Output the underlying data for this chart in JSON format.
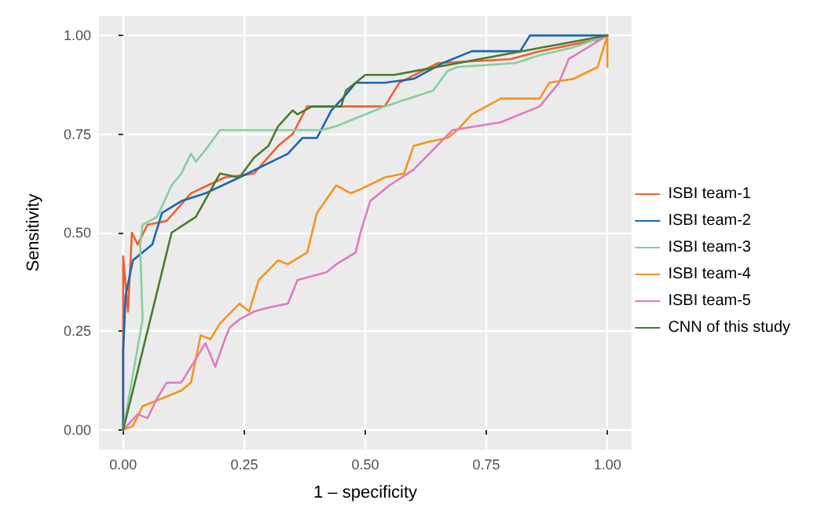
{
  "chart_data": {
    "type": "line",
    "xlabel": "1 – specificity",
    "ylabel": "Sensitivity",
    "xlim": [
      -0.05,
      1.05
    ],
    "ylim": [
      -0.05,
      1.05
    ],
    "xticks": [
      {
        "value": 0,
        "label": "0.00"
      },
      {
        "value": 0.25,
        "label": "0.25"
      },
      {
        "value": 0.5,
        "label": "0.50"
      },
      {
        "value": 0.75,
        "label": "0.75"
      },
      {
        "value": 1,
        "label": "1.00"
      }
    ],
    "yticks": [
      {
        "value": 0,
        "label": "0.00"
      },
      {
        "value": 0.25,
        "label": "0.25"
      },
      {
        "value": 0.5,
        "label": "0.50"
      },
      {
        "value": 0.75,
        "label": "0.75"
      },
      {
        "value": 1,
        "label": "1.00"
      }
    ],
    "grid": true,
    "legend": "right",
    "marker": "none",
    "line_style": "solid",
    "series": [
      {
        "name": "ISBI team-1",
        "color": "#f0602e",
        "x": [
          0,
          0,
          0.01,
          0.018,
          0.03,
          0.05,
          0.09,
          0.14,
          0.21,
          0.27,
          0.32,
          0.35,
          0.38,
          0.54,
          0.57,
          0.65,
          0.8,
          0.86,
          0.98,
          1
        ],
        "values": [
          0,
          0.44,
          0.3,
          0.5,
          0.47,
          0.52,
          0.53,
          0.6,
          0.64,
          0.65,
          0.72,
          0.75,
          0.82,
          0.82,
          0.88,
          0.93,
          0.94,
          0.96,
          0.99,
          1
        ]
      },
      {
        "name": "ISBI team-2",
        "color": "#1866b4",
        "x": [
          0,
          0,
          0.005,
          0.02,
          0.06,
          0.08,
          0.12,
          0.17,
          0.24,
          0.29,
          0.34,
          0.37,
          0.4,
          0.43,
          0.46,
          0.48,
          0.54,
          0.6,
          0.66,
          0.72,
          0.82,
          0.84,
          1
        ],
        "values": [
          0,
          0.2,
          0.34,
          0.43,
          0.47,
          0.55,
          0.58,
          0.6,
          0.64,
          0.67,
          0.7,
          0.74,
          0.74,
          0.81,
          0.85,
          0.88,
          0.88,
          0.89,
          0.93,
          0.96,
          0.96,
          1,
          1
        ]
      },
      {
        "name": "ISBI team-3",
        "color": "#86cfa0",
        "x": [
          0,
          0.04,
          0.035,
          0.04,
          0.07,
          0.1,
          0.12,
          0.14,
          0.15,
          0.17,
          0.2,
          0.22,
          0.41,
          0.44,
          0.48,
          0.52,
          0.54,
          0.64,
          0.67,
          0.69,
          0.81,
          0.86,
          0.93,
          1
        ],
        "values": [
          0,
          0.28,
          0.47,
          0.52,
          0.54,
          0.62,
          0.65,
          0.7,
          0.68,
          0.71,
          0.76,
          0.76,
          0.76,
          0.77,
          0.79,
          0.81,
          0.82,
          0.86,
          0.91,
          0.92,
          0.93,
          0.95,
          0.97,
          1
        ]
      },
      {
        "name": "ISBI team-4",
        "color": "#f7941d",
        "x": [
          0,
          0.02,
          0.04,
          0.08,
          0.12,
          0.14,
          0.16,
          0.18,
          0.2,
          0.24,
          0.26,
          0.28,
          0.32,
          0.34,
          0.38,
          0.4,
          0.44,
          0.47,
          0.49,
          0.54,
          0.58,
          0.6,
          0.63,
          0.67,
          0.69,
          0.72,
          0.78,
          0.86,
          0.88,
          0.93,
          0.98,
          1,
          1
        ],
        "values": [
          0,
          0.01,
          0.06,
          0.08,
          0.1,
          0.12,
          0.24,
          0.23,
          0.27,
          0.32,
          0.3,
          0.38,
          0.43,
          0.42,
          0.45,
          0.55,
          0.62,
          0.6,
          0.61,
          0.64,
          0.65,
          0.72,
          0.73,
          0.74,
          0.76,
          0.8,
          0.84,
          0.84,
          0.88,
          0.89,
          0.92,
          1,
          0.92
        ]
      },
      {
        "name": "ISBI team-5",
        "color": "#e07bbf",
        "x": [
          0,
          0.03,
          0.05,
          0.07,
          0.09,
          0.12,
          0.14,
          0.17,
          0.19,
          0.21,
          0.22,
          0.24,
          0.27,
          0.3,
          0.34,
          0.36,
          0.42,
          0.44,
          0.48,
          0.49,
          0.51,
          0.55,
          0.6,
          0.68,
          0.78,
          0.86,
          0.9,
          0.92,
          0.96,
          1
        ],
        "values": [
          0,
          0.04,
          0.03,
          0.08,
          0.12,
          0.12,
          0.16,
          0.22,
          0.16,
          0.23,
          0.26,
          0.28,
          0.3,
          0.31,
          0.32,
          0.38,
          0.4,
          0.42,
          0.45,
          0.5,
          0.58,
          0.62,
          0.66,
          0.76,
          0.78,
          0.82,
          0.88,
          0.94,
          0.97,
          1
        ]
      },
      {
        "name": "CNN of this study",
        "color": "#4b7a2f",
        "x": [
          0,
          0.1,
          0.15,
          0.2,
          0.24,
          0.27,
          0.3,
          0.32,
          0.35,
          0.36,
          0.39,
          0.45,
          0.46,
          0.5,
          0.56,
          1
        ],
        "values": [
          0,
          0.5,
          0.54,
          0.65,
          0.64,
          0.69,
          0.72,
          0.77,
          0.81,
          0.8,
          0.82,
          0.82,
          0.86,
          0.9,
          0.9,
          1
        ]
      }
    ]
  }
}
